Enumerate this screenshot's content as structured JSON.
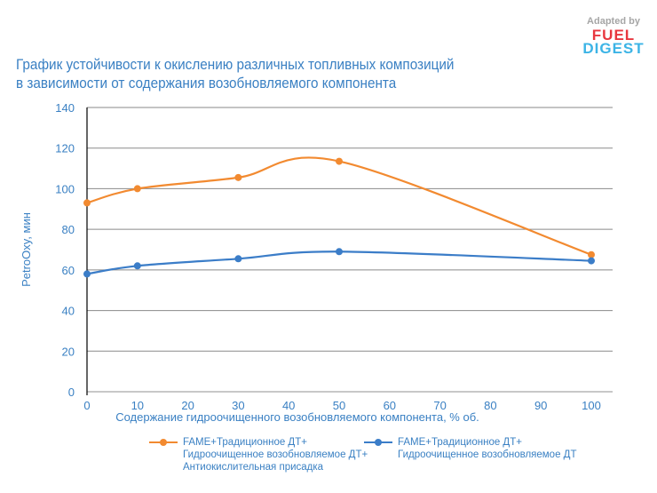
{
  "logo": {
    "adapted": "Adapted by",
    "fuel": "FUEL",
    "digest": "DIGEST"
  },
  "chart_data": {
    "type": "line",
    "title_lines": [
      "График устойчивости к окислению различных топливных композиций",
      "в зависимости от содержания возобновляемого компонента"
    ],
    "xlabel": "Содержание гидроочищенного возобновляемого компонента, % об.",
    "ylabel": "PetroOxy, мин",
    "xlim": [
      0,
      100
    ],
    "ylim": [
      0,
      140
    ],
    "xticks": [
      0,
      10,
      20,
      30,
      40,
      50,
      60,
      70,
      80,
      90,
      100
    ],
    "yticks": [
      0,
      20,
      40,
      60,
      80,
      100,
      120,
      140
    ],
    "grid": "horizontal",
    "legend_position": "bottom",
    "series": [
      {
        "name_lines": [
          "FAME+Традиционное ДТ+",
          "Гидроочищенное возобновляемое ДТ+",
          "Антиокислительная присадка"
        ],
        "color": "#f28a30",
        "x": [
          0,
          10,
          30,
          50,
          100
        ],
        "y": [
          93,
          100,
          105.5,
          113.5,
          67.5
        ]
      },
      {
        "name_lines": [
          "FAME+Традиционное ДТ+",
          "Гидроочищенное возобновляемое ДТ"
        ],
        "color": "#3b7dc8",
        "x": [
          0,
          10,
          30,
          50,
          100
        ],
        "y": [
          58,
          62,
          65.5,
          69,
          64.5
        ]
      }
    ]
  }
}
